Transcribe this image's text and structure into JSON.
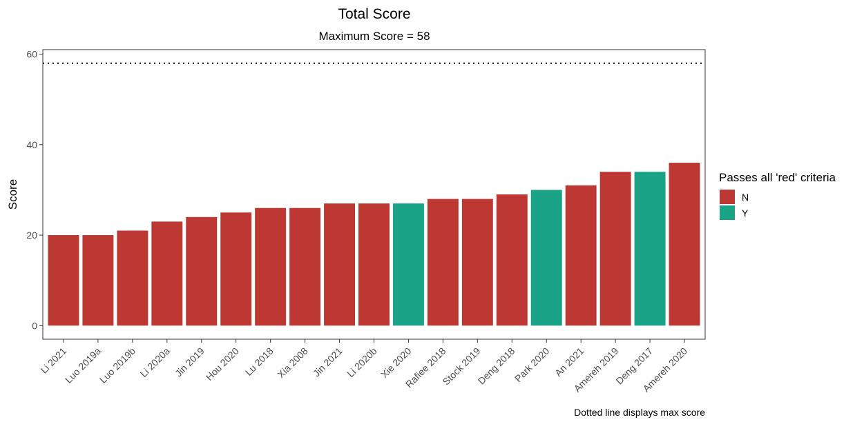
{
  "chart_data": {
    "type": "bar",
    "title": "Total Score",
    "subtitle": "Maximum Score = 58",
    "xlabel": "",
    "ylabel": "Score",
    "ylim": [
      -3,
      61
    ],
    "yticks": [
      0,
      20,
      40,
      60
    ],
    "reference_line": {
      "value": 58,
      "style": "dotted"
    },
    "caption": "Dotted line displays max score",
    "legend": {
      "title": "Passes all 'red' criteria",
      "placement": "right",
      "entries": [
        {
          "key": "N",
          "label": "N",
          "color": "#BD3832"
        },
        {
          "key": "Y",
          "label": "Y",
          "color": "#1BA388"
        }
      ]
    },
    "grid": false,
    "categories": [
      "Li 2021",
      "Luo 2019a",
      "Luo 2019b",
      "Li 2020a",
      "Jin 2019",
      "Hou 2020",
      "Lu 2018",
      "Xia 2008",
      "Jin 2021",
      "Li 2020b",
      "Xie 2020",
      "Rafiee 2018",
      "Stock 2019",
      "Deng 2018",
      "Park 2020",
      "An 2021",
      "Amereh 2019",
      "Deng 2017",
      "Amereh 2020"
    ],
    "values": [
      20,
      20,
      21,
      23,
      24,
      25,
      26,
      26,
      27,
      27,
      27,
      28,
      28,
      29,
      30,
      31,
      34,
      34,
      36
    ],
    "group": [
      "N",
      "N",
      "N",
      "N",
      "N",
      "N",
      "N",
      "N",
      "N",
      "N",
      "Y",
      "N",
      "N",
      "N",
      "Y",
      "N",
      "N",
      "Y",
      "N"
    ]
  }
}
